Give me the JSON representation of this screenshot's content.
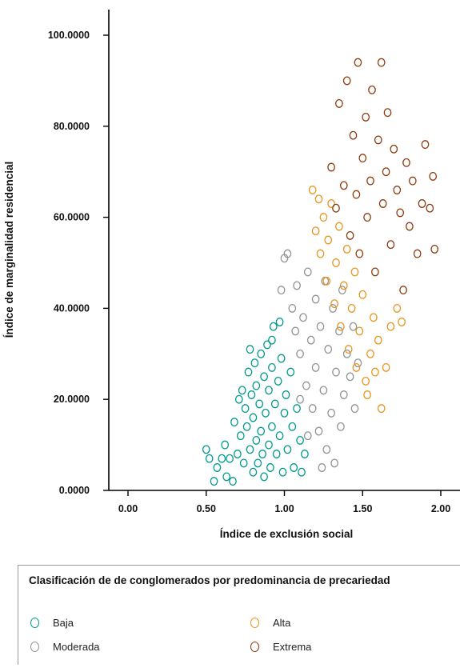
{
  "chart_data": {
    "type": "scatter",
    "xlabel": "Índice de exclusión social",
    "ylabel": "Índice de marginalidad residencial",
    "xlim": [
      0,
      2.08
    ],
    "ylim": [
      0,
      107
    ],
    "x_ticks": [
      {
        "value": 0,
        "label": "0.00"
      },
      {
        "value": 0.5,
        "label": "0.50"
      },
      {
        "value": 1.0,
        "label": "1.00"
      },
      {
        "value": 1.5,
        "label": "1.50"
      },
      {
        "value": 2.0,
        "label": "2.00"
      }
    ],
    "y_ticks": [
      {
        "value": 0,
        "label": "0.0000"
      },
      {
        "value": 20,
        "label": "20.0000"
      },
      {
        "value": 40,
        "label": "40.0000"
      },
      {
        "value": 60,
        "label": "60.0000"
      },
      {
        "value": 80,
        "label": "80.0000"
      },
      {
        "value": 100,
        "label": "100.0000"
      }
    ],
    "grid": false,
    "legend": {
      "title": "Clasificación de de conglomerados por predominancia de precariedad",
      "position": "bottom"
    },
    "series": [
      {
        "name": "Baja",
        "color": "#009a8e",
        "points": [
          [
            0.5,
            9
          ],
          [
            0.52,
            7
          ],
          [
            0.55,
            2
          ],
          [
            0.57,
            5
          ],
          [
            0.6,
            7
          ],
          [
            0.62,
            10
          ],
          [
            0.63,
            3
          ],
          [
            0.65,
            7
          ],
          [
            0.67,
            2
          ],
          [
            0.68,
            15
          ],
          [
            0.7,
            8
          ],
          [
            0.71,
            20
          ],
          [
            0.72,
            12
          ],
          [
            0.73,
            22
          ],
          [
            0.74,
            6
          ],
          [
            0.75,
            18
          ],
          [
            0.76,
            14
          ],
          [
            0.77,
            26
          ],
          [
            0.78,
            9
          ],
          [
            0.79,
            21
          ],
          [
            0.8,
            4
          ],
          [
            0.8,
            16
          ],
          [
            0.81,
            28
          ],
          [
            0.82,
            11
          ],
          [
            0.82,
            23
          ],
          [
            0.83,
            6
          ],
          [
            0.84,
            19
          ],
          [
            0.85,
            30
          ],
          [
            0.85,
            13
          ],
          [
            0.86,
            8
          ],
          [
            0.87,
            25
          ],
          [
            0.87,
            3
          ],
          [
            0.88,
            17
          ],
          [
            0.89,
            32
          ],
          [
            0.9,
            10
          ],
          [
            0.9,
            22
          ],
          [
            0.91,
            5
          ],
          [
            0.92,
            27
          ],
          [
            0.92,
            14
          ],
          [
            0.93,
            36
          ],
          [
            0.94,
            19
          ],
          [
            0.95,
            8
          ],
          [
            0.96,
            24
          ],
          [
            0.97,
            12
          ],
          [
            0.98,
            29
          ],
          [
            0.99,
            4
          ],
          [
            1.0,
            17
          ],
          [
            1.01,
            21
          ],
          [
            1.02,
            9
          ],
          [
            1.04,
            26
          ],
          [
            1.05,
            14
          ],
          [
            1.06,
            5
          ],
          [
            1.08,
            18
          ],
          [
            1.1,
            11
          ],
          [
            1.11,
            4
          ],
          [
            1.13,
            8
          ],
          [
            0.78,
            31
          ],
          [
            0.92,
            33
          ],
          [
            0.97,
            37
          ]
        ]
      },
      {
        "name": "Moderada",
        "color": "#8f9396",
        "points": [
          [
            0.98,
            44
          ],
          [
            1.0,
            51
          ],
          [
            1.02,
            52
          ],
          [
            1.05,
            40
          ],
          [
            1.07,
            35
          ],
          [
            1.08,
            45
          ],
          [
            1.1,
            30
          ],
          [
            1.12,
            38
          ],
          [
            1.14,
            23
          ],
          [
            1.15,
            48
          ],
          [
            1.17,
            33
          ],
          [
            1.18,
            18
          ],
          [
            1.2,
            27
          ],
          [
            1.2,
            42
          ],
          [
            1.22,
            13
          ],
          [
            1.23,
            36
          ],
          [
            1.25,
            22
          ],
          [
            1.26,
            46
          ],
          [
            1.27,
            9
          ],
          [
            1.28,
            31
          ],
          [
            1.3,
            17
          ],
          [
            1.31,
            40
          ],
          [
            1.32,
            6
          ],
          [
            1.33,
            26
          ],
          [
            1.35,
            35
          ],
          [
            1.36,
            14
          ],
          [
            1.37,
            44
          ],
          [
            1.38,
            21
          ],
          [
            1.4,
            30
          ],
          [
            1.42,
            25
          ],
          [
            1.44,
            36
          ],
          [
            1.45,
            18
          ],
          [
            1.47,
            28
          ],
          [
            1.1,
            20
          ],
          [
            1.24,
            5
          ],
          [
            1.15,
            12
          ]
        ]
      },
      {
        "name": "Alta",
        "color": "#e8951f",
        "points": [
          [
            1.18,
            66
          ],
          [
            1.2,
            57
          ],
          [
            1.22,
            64
          ],
          [
            1.23,
            52
          ],
          [
            1.25,
            60
          ],
          [
            1.27,
            46
          ],
          [
            1.28,
            55
          ],
          [
            1.3,
            63
          ],
          [
            1.32,
            41
          ],
          [
            1.33,
            50
          ],
          [
            1.35,
            58
          ],
          [
            1.36,
            36
          ],
          [
            1.38,
            45
          ],
          [
            1.4,
            53
          ],
          [
            1.41,
            31
          ],
          [
            1.43,
            40
          ],
          [
            1.45,
            48
          ],
          [
            1.46,
            27
          ],
          [
            1.48,
            35
          ],
          [
            1.5,
            43
          ],
          [
            1.52,
            24
          ],
          [
            1.55,
            30
          ],
          [
            1.57,
            38
          ],
          [
            1.6,
            33
          ],
          [
            1.62,
            18
          ],
          [
            1.65,
            27
          ],
          [
            1.68,
            36
          ],
          [
            1.72,
            40
          ],
          [
            1.75,
            37
          ],
          [
            1.53,
            21
          ],
          [
            1.58,
            26
          ]
        ]
      },
      {
        "name": "Extrema",
        "color": "#8c3b0c",
        "points": [
          [
            1.3,
            71
          ],
          [
            1.33,
            62
          ],
          [
            1.35,
            85
          ],
          [
            1.38,
            67
          ],
          [
            1.4,
            90
          ],
          [
            1.42,
            56
          ],
          [
            1.44,
            78
          ],
          [
            1.46,
            65
          ],
          [
            1.47,
            94
          ],
          [
            1.48,
            52
          ],
          [
            1.5,
            73
          ],
          [
            1.52,
            82
          ],
          [
            1.53,
            60
          ],
          [
            1.55,
            68
          ],
          [
            1.56,
            88
          ],
          [
            1.58,
            48
          ],
          [
            1.6,
            77
          ],
          [
            1.62,
            94
          ],
          [
            1.63,
            63
          ],
          [
            1.65,
            70
          ],
          [
            1.66,
            83
          ],
          [
            1.68,
            54
          ],
          [
            1.7,
            75
          ],
          [
            1.72,
            66
          ],
          [
            1.74,
            61
          ],
          [
            1.76,
            44
          ],
          [
            1.78,
            72
          ],
          [
            1.8,
            58
          ],
          [
            1.82,
            68
          ],
          [
            1.85,
            52
          ],
          [
            1.88,
            63
          ],
          [
            1.9,
            76
          ],
          [
            1.93,
            62
          ],
          [
            1.95,
            69
          ],
          [
            1.96,
            53
          ]
        ]
      }
    ]
  }
}
